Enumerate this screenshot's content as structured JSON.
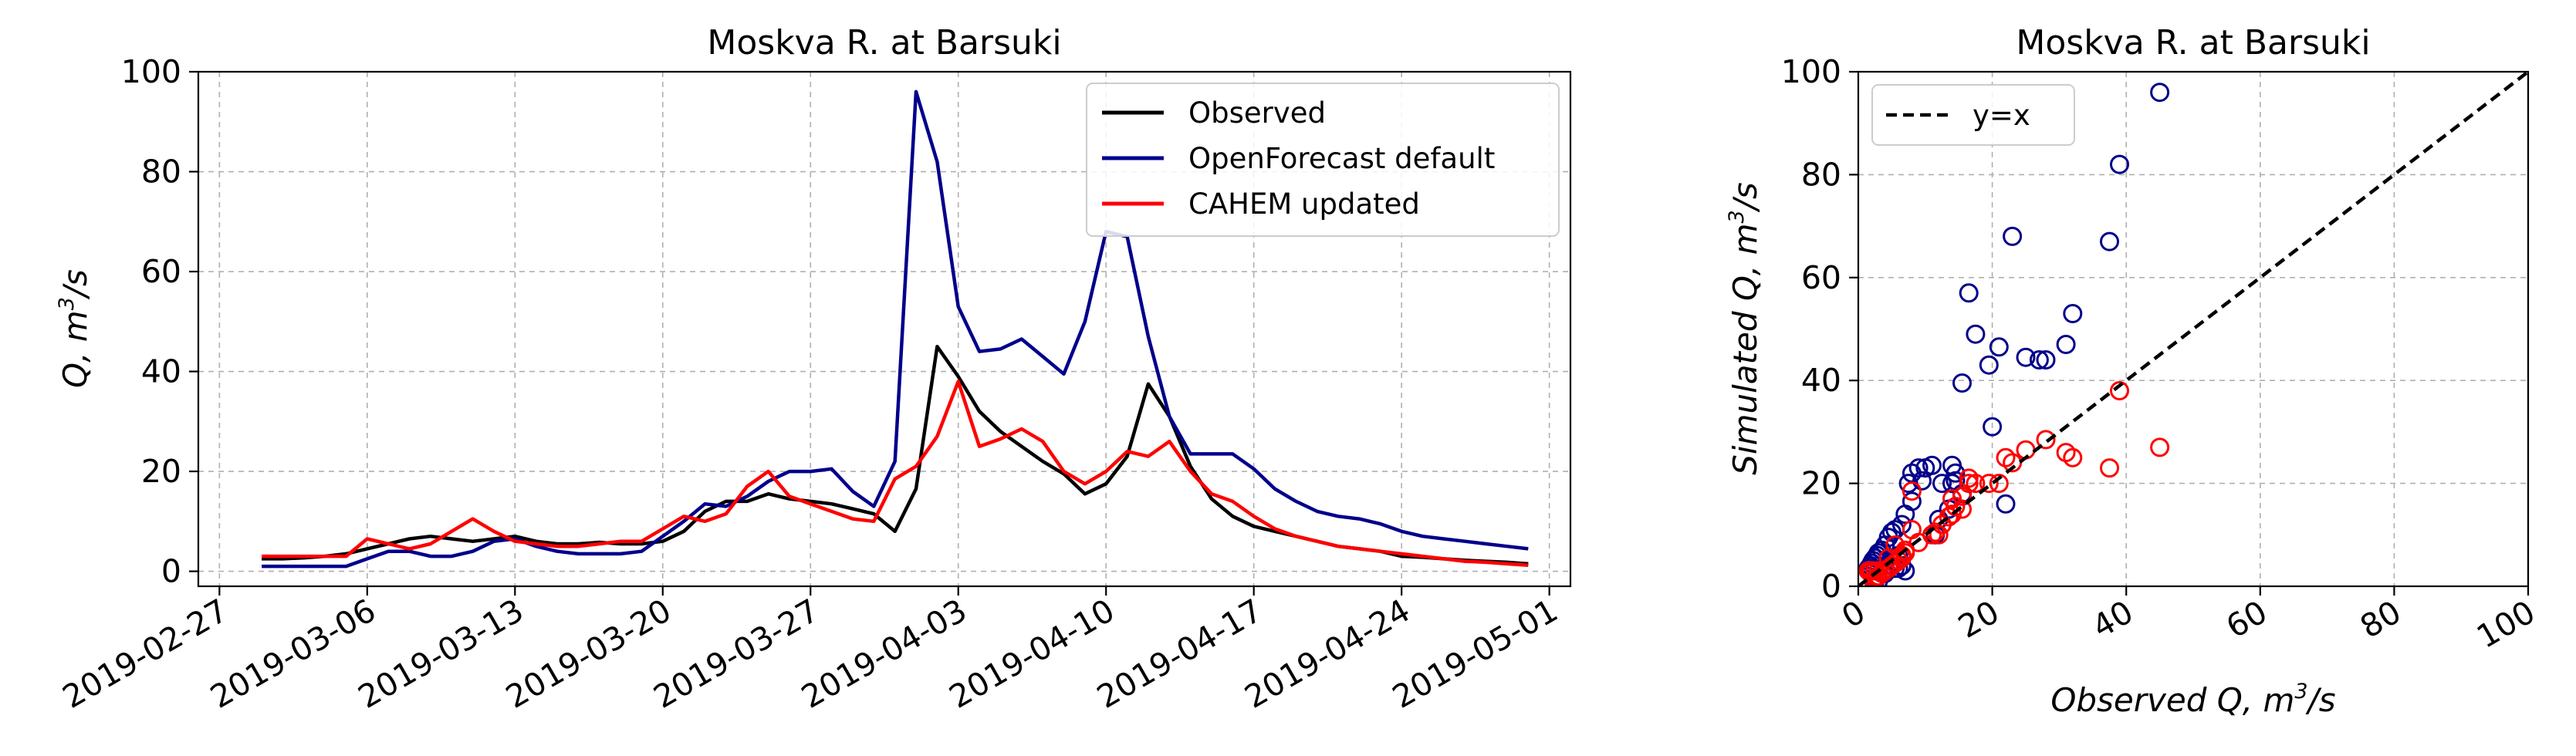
{
  "chart_data": [
    {
      "type": "line",
      "title": "Moskva R. at Barsuki",
      "ylabel_prefix": "Q, m",
      "ylabel_sup": "3",
      "ylabel_suffix": "/s",
      "xlabel": "",
      "x_type": "date",
      "xlim": [
        "2019-02-26",
        "2019-05-02"
      ],
      "ylim": [
        -3,
        100
      ],
      "xticks": [
        "2019-02-27",
        "2019-03-06",
        "2019-03-13",
        "2019-03-20",
        "2019-03-27",
        "2019-04-03",
        "2019-04-10",
        "2019-04-17",
        "2019-04-24",
        "2019-05-01"
      ],
      "yticks": [
        0,
        20,
        40,
        60,
        80,
        100
      ],
      "grid": true,
      "legend_position": "top-right",
      "x": [
        "2019-03-01",
        "2019-03-02",
        "2019-03-03",
        "2019-03-04",
        "2019-03-05",
        "2019-03-06",
        "2019-03-07",
        "2019-03-08",
        "2019-03-09",
        "2019-03-10",
        "2019-03-11",
        "2019-03-12",
        "2019-03-13",
        "2019-03-14",
        "2019-03-15",
        "2019-03-16",
        "2019-03-17",
        "2019-03-18",
        "2019-03-19",
        "2019-03-20",
        "2019-03-21",
        "2019-03-22",
        "2019-03-23",
        "2019-03-24",
        "2019-03-25",
        "2019-03-26",
        "2019-03-27",
        "2019-03-28",
        "2019-03-29",
        "2019-03-30",
        "2019-03-31",
        "2019-04-01",
        "2019-04-02",
        "2019-04-03",
        "2019-04-04",
        "2019-04-05",
        "2019-04-06",
        "2019-04-07",
        "2019-04-08",
        "2019-04-09",
        "2019-04-10",
        "2019-04-11",
        "2019-04-12",
        "2019-04-13",
        "2019-04-14",
        "2019-04-15",
        "2019-04-16",
        "2019-04-17",
        "2019-04-18",
        "2019-04-19",
        "2019-04-20",
        "2019-04-21",
        "2019-04-22",
        "2019-04-23",
        "2019-04-24",
        "2019-04-25",
        "2019-04-26",
        "2019-04-27",
        "2019-04-28",
        "2019-04-29",
        "2019-04-30"
      ],
      "series": [
        {
          "name": "Observed",
          "color": "#000000",
          "values": [
            2.5,
            2.5,
            2.7,
            3.0,
            3.5,
            4.5,
            5.5,
            6.5,
            7.0,
            6.5,
            6.0,
            6.5,
            7.0,
            6.0,
            5.5,
            5.5,
            5.8,
            5.5,
            5.5,
            6.0,
            8.0,
            12.0,
            14.0,
            14.0,
            15.5,
            14.5,
            14.0,
            13.5,
            12.5,
            11.5,
            8.0,
            16.5,
            45.0,
            39.0,
            32.0,
            28.0,
            25.0,
            22.0,
            19.5,
            15.5,
            17.5,
            23.0,
            37.5,
            31.0,
            21.0,
            14.5,
            11.0,
            9.0,
            8.0,
            7.0,
            6.0,
            5.0,
            4.5,
            4.0,
            3.0,
            2.8,
            2.5,
            2.2,
            2.0,
            1.8,
            1.5
          ]
        },
        {
          "name": "OpenForecast default",
          "color": "#00008b",
          "values": [
            1.0,
            1.0,
            1.0,
            1.0,
            1.0,
            2.5,
            4.0,
            4.0,
            3.0,
            3.0,
            4.0,
            6.0,
            6.5,
            5.0,
            4.0,
            3.5,
            3.5,
            3.5,
            4.0,
            7.0,
            10.0,
            13.5,
            13.0,
            15.0,
            18.0,
            20.0,
            20.0,
            20.5,
            16.0,
            13.0,
            22.0,
            96.0,
            82.0,
            53.0,
            44.0,
            44.5,
            46.5,
            43.0,
            39.5,
            50.0,
            68.0,
            67.0,
            47.0,
            31.0,
            23.5,
            23.5,
            23.5,
            20.5,
            16.5,
            14.0,
            12.0,
            11.0,
            10.5,
            9.5,
            8.0,
            7.0,
            6.5,
            6.0,
            5.5,
            5.0,
            4.5
          ]
        },
        {
          "name": "CAHEM updated",
          "color": "#ff0000",
          "values": [
            3.0,
            3.0,
            3.0,
            3.0,
            3.0,
            6.5,
            5.5,
            4.5,
            5.5,
            8.0,
            10.5,
            8.0,
            6.0,
            5.5,
            5.0,
            5.0,
            5.5,
            6.0,
            6.0,
            8.5,
            11.0,
            10.0,
            11.5,
            17.0,
            20.0,
            15.0,
            13.5,
            12.0,
            10.5,
            10.0,
            18.5,
            21.0,
            27.0,
            38.0,
            25.0,
            26.5,
            28.5,
            26.0,
            20.0,
            17.5,
            20.0,
            24.0,
            23.0,
            26.0,
            20.0,
            15.5,
            14.0,
            11.0,
            8.5,
            7.0,
            6.0,
            5.0,
            4.5,
            4.0,
            3.5,
            3.0,
            2.5,
            2.0,
            1.8,
            1.5,
            1.2
          ]
        }
      ]
    },
    {
      "type": "scatter",
      "title": "Moskva R. at Barsuki",
      "xlabel_prefix": "Observed Q, m",
      "xlabel_sup": "3",
      "xlabel_suffix": "/s",
      "ylabel_prefix": "Simulated Q, m",
      "ylabel_sup": "3",
      "ylabel_suffix": "/s",
      "xlim": [
        0,
        100
      ],
      "ylim": [
        0,
        100
      ],
      "xticks": [
        0,
        20,
        40,
        60,
        80,
        100
      ],
      "yticks": [
        0,
        20,
        40,
        60,
        80,
        100
      ],
      "grid": true,
      "legend_position": "top-left",
      "reference_line": {
        "name": "y=x",
        "color": "#000000",
        "style": "dashed",
        "x": [
          0,
          100
        ],
        "y": [
          0,
          100
        ]
      },
      "series": [
        {
          "name": "OpenForecast default",
          "color": "#00008b",
          "x": [
            45.0,
            39.0,
            37.5,
            23.0,
            16.5,
            32.0,
            17.5,
            31.0,
            21.0,
            27.0,
            19.5,
            25.0,
            28.0,
            15.5,
            20.0,
            14.0,
            14.5,
            14.0,
            15.5,
            22.0,
            14.5,
            12.5,
            11.0,
            9.0,
            8.0,
            7.0,
            6.5,
            5.5,
            5.0,
            4.5,
            4.0,
            3.5,
            3.0,
            2.8,
            2.5,
            2.2,
            2.0,
            1.8,
            1.5,
            6.0,
            7.0,
            5.5,
            6.5,
            12.0,
            13.5,
            11.5,
            8.0,
            9.5,
            10.0,
            7.5,
            6.0,
            5.0,
            4.0,
            3.0,
            2.5
          ],
          "y": [
            96.0,
            82.0,
            67.0,
            68.0,
            57.0,
            53.0,
            49.0,
            47.0,
            46.5,
            44.0,
            43.0,
            44.5,
            44.0,
            39.5,
            31.0,
            23.5,
            22.0,
            20.0,
            18.0,
            16.0,
            20.5,
            20.0,
            23.5,
            23.0,
            16.5,
            14.0,
            12.0,
            11.0,
            10.5,
            9.5,
            8.0,
            7.0,
            6.5,
            6.0,
            5.5,
            5.0,
            4.5,
            4.0,
            3.5,
            3.5,
            3.0,
            3.5,
            4.0,
            13.0,
            15.0,
            10.0,
            22.0,
            20.5,
            23.0,
            20.0,
            6.0,
            4.0,
            2.5,
            1.0,
            1.0
          ]
        },
        {
          "name": "CAHEM updated",
          "color": "#ff0000",
          "x": [
            45.0,
            39.0,
            37.5,
            32.0,
            31.0,
            28.0,
            25.0,
            22.0,
            19.5,
            17.5,
            16.5,
            15.5,
            14.5,
            14.0,
            13.5,
            12.5,
            11.5,
            11.0,
            9.0,
            8.0,
            8.0,
            7.0,
            6.5,
            6.0,
            5.5,
            5.0,
            4.5,
            4.0,
            3.5,
            3.0,
            2.8,
            2.5,
            2.2,
            2.0,
            1.8,
            1.5,
            23.0,
            21.0,
            15.5,
            14.0,
            12.0,
            16.5,
            6.5,
            7.0,
            5.5,
            4.5,
            3.0,
            2.5
          ],
          "y": [
            27.0,
            38.0,
            23.0,
            25.0,
            26.0,
            28.5,
            26.5,
            25.0,
            20.0,
            20.0,
            21.0,
            17.5,
            15.5,
            14.0,
            13.5,
            12.0,
            10.5,
            10.0,
            8.5,
            18.5,
            11.0,
            7.0,
            6.0,
            5.0,
            4.5,
            4.0,
            3.5,
            3.0,
            2.5,
            2.0,
            1.8,
            1.5,
            1.2,
            3.0,
            3.0,
            3.0,
            24.0,
            20.0,
            15.0,
            17.0,
            10.0,
            20.0,
            5.5,
            6.5,
            8.0,
            5.5,
            3.0,
            3.0
          ]
        }
      ]
    }
  ]
}
